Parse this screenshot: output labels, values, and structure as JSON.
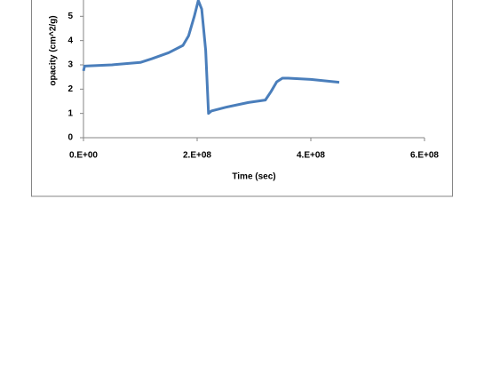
{
  "chart_data": {
    "type": "line",
    "x_label": "Time (sec)",
    "y_label": "opacity (cm^2/g)",
    "series": [
      {
        "color": "#4a7ebb",
        "x": [
          0,
          2000000,
          50000000,
          100000000,
          120000000,
          150000000,
          175000000,
          185000000,
          195000000,
          202000000,
          208000000,
          215000000,
          220000000,
          225000000,
          250000000,
          290000000,
          320000000,
          330000000,
          340000000,
          350000000,
          360000000,
          400000000,
          450000000
        ],
        "values": [
          2.75,
          2.95,
          3.0,
          3.1,
          3.25,
          3.5,
          3.8,
          4.2,
          5.0,
          5.65,
          5.3,
          3.6,
          1.0,
          1.1,
          1.25,
          1.45,
          1.55,
          1.9,
          2.3,
          2.45,
          2.45,
          2.4,
          2.28
        ]
      }
    ],
    "xlim": [
      0,
      600000000
    ],
    "xticks": [
      {
        "value": 0,
        "label": "0.E+00"
      },
      {
        "value": 200000000,
        "label": "2.E+08"
      },
      {
        "value": 400000000,
        "label": "4.E+08"
      },
      {
        "value": 600000000,
        "label": "6.E+08"
      }
    ],
    "ylim": [
      0,
      6
    ],
    "yticks": [
      0,
      1,
      2,
      3,
      4,
      5
    ]
  }
}
